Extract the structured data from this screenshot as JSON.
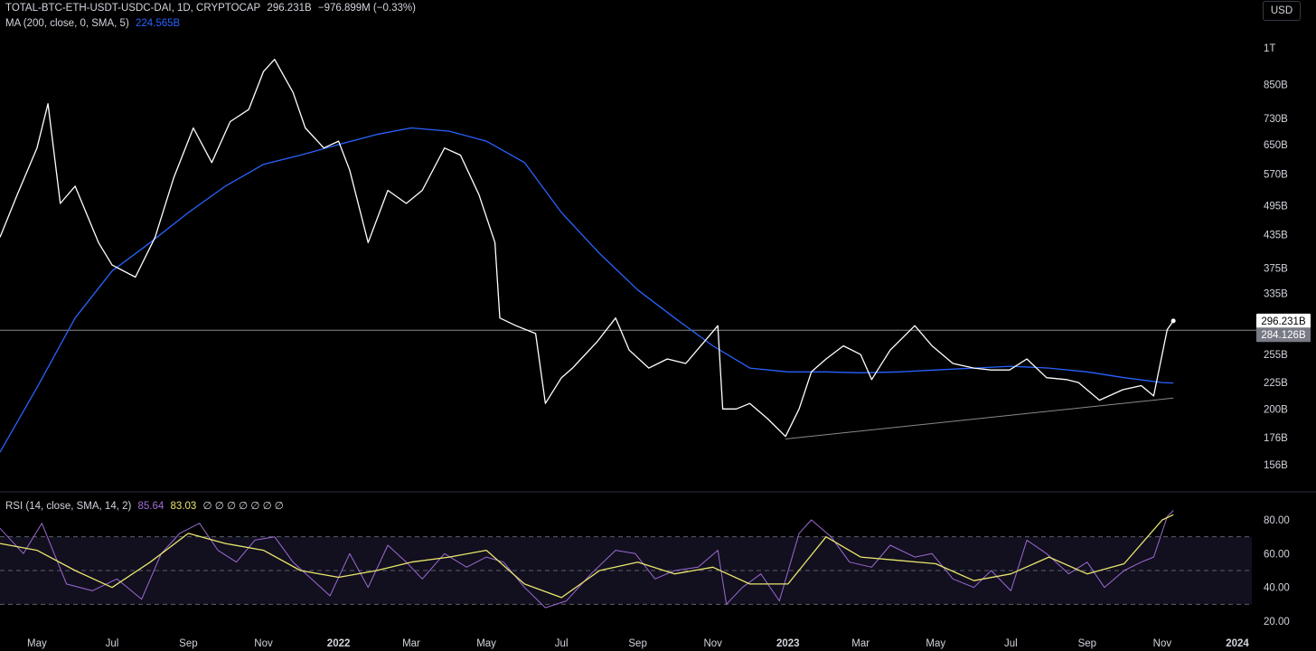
{
  "legend": {
    "main": [
      "TOTAL-BTC-ETH-USDT-USDC-DAI, 1D, CRYPTOCAP",
      "296.231B",
      "−976.899M (−0.33%)"
    ],
    "ma_label": "MA (200, close, 0, SMA, 5)",
    "ma_value": "224.565B",
    "rsi_label": "RSI (14, close, SMA, 14, 2)",
    "rsi_value": "85.64",
    "rsi_ma_value": "83.03",
    "rsi_extra": "∅ ∅ ∅ ∅ ∅ ∅ ∅"
  },
  "currency_button": "USD",
  "colors": {
    "price": "#ffffff",
    "ma": "#2962ff",
    "rsi": "#9b6cd3",
    "rsi_ma": "#e9e66b",
    "trendline": "#8a8a8a",
    "hline": "#8a8a8a"
  },
  "chart_data": [
    {
      "type": "line",
      "title": "TOTAL-BTC-ETH-USDT-USDC-DAI, 1D, CRYPTOCAP",
      "y_scale": "log",
      "y_ticks": [
        "1T",
        "850B",
        "730B",
        "650B",
        "570B",
        "495B",
        "435B",
        "375B",
        "335B",
        "255B",
        "225B",
        "200B",
        "176B",
        "156B"
      ],
      "x_ticks": [
        "May",
        "Jul",
        "Sep",
        "Nov",
        "2022",
        "Mar",
        "May",
        "Jul",
        "Sep",
        "Nov",
        "2023",
        "Mar",
        "May",
        "Jul",
        "Sep",
        "Nov",
        "2024"
      ],
      "grid": false,
      "series": [
        {
          "name": "Close",
          "x": [
            "2021-04-01",
            "2021-04-15",
            "2021-05-01",
            "2021-05-10",
            "2021-05-20",
            "2021-06-01",
            "2021-06-20",
            "2021-07-01",
            "2021-07-20",
            "2021-08-05",
            "2021-08-20",
            "2021-09-05",
            "2021-09-20",
            "2021-10-05",
            "2021-10-20",
            "2021-11-01",
            "2021-11-10",
            "2021-11-25",
            "2021-12-05",
            "2021-12-20",
            "2022-01-01",
            "2022-01-10",
            "2022-01-25",
            "2022-02-10",
            "2022-02-25",
            "2022-03-10",
            "2022-03-28",
            "2022-04-10",
            "2022-04-25",
            "2022-05-08",
            "2022-05-12",
            "2022-05-25",
            "2022-06-10",
            "2022-06-18",
            "2022-07-01",
            "2022-07-10",
            "2022-07-30",
            "2022-08-14",
            "2022-08-25",
            "2022-09-10",
            "2022-09-25",
            "2022-10-10",
            "2022-10-25",
            "2022-11-05",
            "2022-11-09",
            "2022-11-20",
            "2022-12-01",
            "2022-12-15",
            "2022-12-30",
            "2023-01-10",
            "2023-01-20",
            "2023-02-01",
            "2023-02-15",
            "2023-03-01",
            "2023-03-10",
            "2023-03-25",
            "2023-04-14",
            "2023-04-28",
            "2023-05-15",
            "2023-06-01",
            "2023-06-15",
            "2023-06-30",
            "2023-07-14",
            "2023-07-30",
            "2023-08-15",
            "2023-08-25",
            "2023-09-11",
            "2023-09-30",
            "2023-10-15",
            "2023-10-25",
            "2023-11-05",
            "2023-11-10"
          ],
          "values": [
            430,
            520,
            640,
            780,
            500,
            540,
            420,
            380,
            360,
            430,
            560,
            700,
            600,
            720,
            760,
            900,
            950,
            820,
            700,
            640,
            660,
            580,
            420,
            530,
            500,
            530,
            640,
            620,
            520,
            420,
            300,
            290,
            280,
            205,
            230,
            240,
            270,
            300,
            260,
            240,
            250,
            245,
            270,
            290,
            200,
            200,
            205,
            192,
            177,
            200,
            236,
            250,
            265,
            255,
            228,
            260,
            290,
            265,
            245,
            240,
            238,
            238,
            250,
            230,
            228,
            225,
            208,
            218,
            222,
            212,
            285,
            296.231
          ]
        },
        {
          "name": "MA (200, close, 0, SMA, 5)",
          "x": [
            "2021-04-01",
            "2021-05-01",
            "2021-06-01",
            "2021-07-01",
            "2021-08-01",
            "2021-09-01",
            "2021-10-01",
            "2021-11-01",
            "2021-12-01",
            "2022-01-01",
            "2022-02-01",
            "2022-03-01",
            "2022-04-01",
            "2022-05-01",
            "2022-06-01",
            "2022-07-01",
            "2022-08-01",
            "2022-09-01",
            "2022-10-01",
            "2022-11-01",
            "2022-12-01",
            "2023-01-01",
            "2023-02-01",
            "2023-03-01",
            "2023-04-01",
            "2023-05-01",
            "2023-06-01",
            "2023-07-01",
            "2023-08-01",
            "2023-09-01",
            "2023-10-01",
            "2023-11-01",
            "2023-11-10"
          ],
          "values": [
            165,
            220,
            300,
            370,
            420,
            480,
            540,
            595,
            620,
            650,
            680,
            700,
            690,
            660,
            600,
            480,
            400,
            340,
            300,
            265,
            240,
            236,
            236,
            235,
            236,
            238,
            240,
            242,
            240,
            236,
            230,
            225,
            224.565
          ]
        }
      ],
      "annotations": {
        "current_price_label": "296.231B",
        "hline_label": "284.126B",
        "hline_value": 284.126,
        "trendline": {
          "from": [
            "2022-12-30",
            175
          ],
          "to": [
            "2023-11-10",
            210
          ]
        }
      }
    },
    {
      "type": "line",
      "title": "RSI (14, close, SMA, 14, 2)",
      "y_ticks": [
        "80.00",
        "60.00",
        "40.00",
        "20.00"
      ],
      "bands": [
        70,
        50,
        30
      ],
      "series": [
        {
          "name": "RSI",
          "x": [
            "2021-04-01",
            "2021-04-20",
            "2021-05-05",
            "2021-05-25",
            "2021-06-15",
            "2021-07-05",
            "2021-07-25",
            "2021-08-10",
            "2021-08-25",
            "2021-09-10",
            "2021-09-25",
            "2021-10-10",
            "2021-10-25",
            "2021-11-10",
            "2021-11-25",
            "2021-12-10",
            "2021-12-25",
            "2022-01-10",
            "2022-01-25",
            "2022-02-10",
            "2022-02-25",
            "2022-03-10",
            "2022-03-28",
            "2022-04-15",
            "2022-05-01",
            "2022-05-15",
            "2022-06-01",
            "2022-06-18",
            "2022-07-05",
            "2022-07-25",
            "2022-08-14",
            "2022-08-30",
            "2022-09-15",
            "2022-10-01",
            "2022-10-20",
            "2022-11-05",
            "2022-11-12",
            "2022-11-25",
            "2022-12-10",
            "2022-12-25",
            "2023-01-10",
            "2023-01-20",
            "2023-02-05",
            "2023-02-20",
            "2023-03-10",
            "2023-03-25",
            "2023-04-14",
            "2023-04-28",
            "2023-05-15",
            "2023-06-01",
            "2023-06-15",
            "2023-07-01",
            "2023-07-14",
            "2023-07-30",
            "2023-08-17",
            "2023-09-01",
            "2023-09-15",
            "2023-10-01",
            "2023-10-15",
            "2023-10-25",
            "2023-11-05",
            "2023-11-10"
          ],
          "values": [
            75,
            60,
            78,
            42,
            38,
            45,
            33,
            60,
            72,
            78,
            62,
            55,
            68,
            70,
            55,
            45,
            35,
            60,
            40,
            65,
            55,
            45,
            60,
            52,
            58,
            55,
            40,
            28,
            32,
            48,
            62,
            60,
            45,
            50,
            52,
            62,
            30,
            40,
            48,
            32,
            72,
            80,
            70,
            55,
            52,
            65,
            58,
            60,
            45,
            40,
            50,
            38,
            68,
            60,
            48,
            55,
            40,
            50,
            55,
            58,
            82,
            85.64
          ]
        },
        {
          "name": "RSI-based MA",
          "x": [
            "2021-04-01",
            "2021-05-01",
            "2021-06-01",
            "2021-07-01",
            "2021-08-01",
            "2021-09-01",
            "2021-10-01",
            "2021-11-01",
            "2021-12-01",
            "2022-01-01",
            "2022-02-01",
            "2022-03-01",
            "2022-04-01",
            "2022-05-01",
            "2022-06-01",
            "2022-07-01",
            "2022-08-01",
            "2022-09-01",
            "2022-10-01",
            "2022-11-01",
            "2022-12-01",
            "2023-01-01",
            "2023-02-01",
            "2023-03-01",
            "2023-04-01",
            "2023-05-01",
            "2023-06-01",
            "2023-07-01",
            "2023-08-01",
            "2023-09-01",
            "2023-10-01",
            "2023-11-01",
            "2023-11-10"
          ],
          "values": [
            66,
            62,
            50,
            40,
            55,
            72,
            66,
            62,
            50,
            46,
            50,
            55,
            58,
            62,
            42,
            34,
            50,
            55,
            48,
            52,
            42,
            42,
            70,
            58,
            56,
            54,
            44,
            48,
            58,
            48,
            54,
            80,
            83.03
          ]
        }
      ]
    }
  ]
}
